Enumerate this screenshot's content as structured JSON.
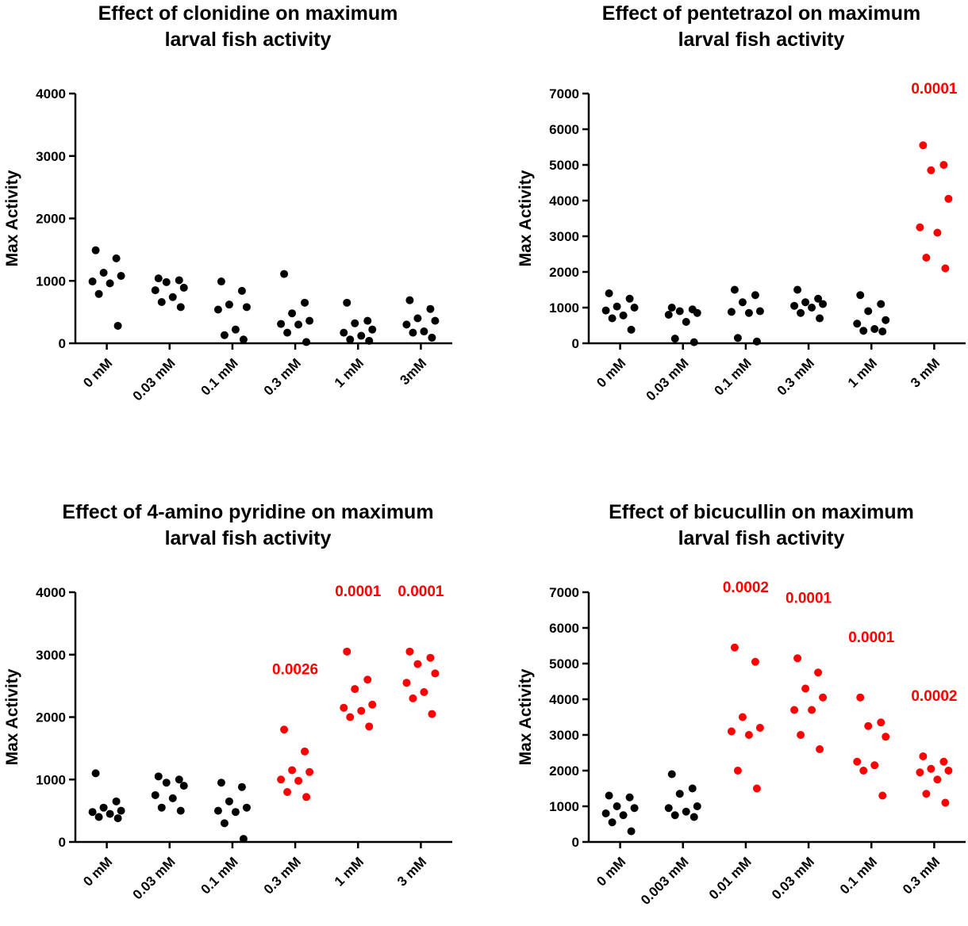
{
  "chart_data": [
    {
      "type": "strip",
      "title": [
        "Effect of clonidine on maximum",
        "larval fish activity"
      ],
      "y_label": "Max Activity",
      "categories": [
        "0 mM",
        "0.03 mM",
        "0.1 mM",
        "0.3 mM",
        "1 mM",
        "3mM"
      ],
      "colors": [
        "#000000",
        "#000000",
        "#000000",
        "#000000",
        "#000000",
        "#000000"
      ],
      "annotations": [
        null,
        null,
        null,
        null,
        null,
        null
      ],
      "values": [
        [
          1490,
          1360,
          1130,
          1080,
          990,
          960,
          790,
          280
        ],
        [
          1040,
          1010,
          980,
          890,
          850,
          740,
          660,
          580
        ],
        [
          990,
          840,
          620,
          580,
          540,
          220,
          130,
          60
        ],
        [
          1110,
          650,
          480,
          360,
          310,
          300,
          170,
          20
        ],
        [
          650,
          360,
          320,
          220,
          170,
          120,
          60,
          40
        ],
        [
          690,
          550,
          400,
          360,
          300,
          190,
          170,
          90
        ]
      ],
      "ylim": [
        0,
        4000
      ],
      "yticks": [
        0,
        1000,
        2000,
        3000,
        4000
      ]
    },
    {
      "type": "strip",
      "title": [
        "Effect of pentetrazol on maximum",
        "larval fish activity"
      ],
      "y_label": "Max Activity",
      "categories": [
        "0 mM",
        "0.03 mM",
        "0.1 mM",
        "0.3 mM",
        "1 mM",
        "3 mM"
      ],
      "colors": [
        "#000000",
        "#000000",
        "#000000",
        "#000000",
        "#000000",
        "#ff0000"
      ],
      "annotations": [
        null,
        null,
        null,
        null,
        null,
        "0.0001"
      ],
      "values": [
        [
          1400,
          1250,
          1030,
          1000,
          920,
          780,
          700,
          380
        ],
        [
          1000,
          950,
          900,
          850,
          800,
          600,
          130,
          30
        ],
        [
          1500,
          1350,
          1150,
          900,
          880,
          850,
          150,
          50
        ],
        [
          1500,
          1250,
          1150,
          1100,
          1050,
          1000,
          850,
          700
        ],
        [
          1350,
          1100,
          900,
          650,
          550,
          400,
          350,
          330
        ],
        [
          5550,
          5000,
          4850,
          4050,
          3250,
          3100,
          2400,
          2100
        ]
      ],
      "ylim": [
        0,
        7000
      ],
      "yticks": [
        0,
        1000,
        2000,
        3000,
        4000,
        5000,
        6000,
        7000
      ]
    },
    {
      "type": "strip",
      "title": [
        "Effect of 4-amino pyridine on maximum",
        "larval fish activity"
      ],
      "y_label": "Max Activity",
      "categories": [
        "0 mM",
        "0.03 mM",
        "0.1 mM",
        "0.3 mM",
        "1 mM",
        "3 mM"
      ],
      "colors": [
        "#000000",
        "#000000",
        "#000000",
        "#ff0000",
        "#ff0000",
        "#ff0000"
      ],
      "annotations": [
        null,
        null,
        null,
        "0.0026",
        "0.0001",
        "0.0001"
      ],
      "values": [
        [
          1100,
          650,
          550,
          500,
          480,
          450,
          400,
          380
        ],
        [
          1050,
          1000,
          950,
          900,
          750,
          700,
          550,
          500
        ],
        [
          950,
          880,
          650,
          550,
          500,
          480,
          300,
          50
        ],
        [
          1800,
          1450,
          1150,
          1120,
          1000,
          980,
          800,
          720
        ],
        [
          3050,
          2600,
          2450,
          2200,
          2150,
          2100,
          2000,
          1850
        ],
        [
          3050,
          2950,
          2850,
          2700,
          2550,
          2400,
          2300,
          2050
        ]
      ],
      "ylim": [
        0,
        4000
      ],
      "yticks": [
        0,
        1000,
        2000,
        3000,
        4000
      ]
    },
    {
      "type": "strip",
      "title": [
        "Effect of bicucullin on maximum",
        "larval fish activity"
      ],
      "y_label": "Max Activity",
      "categories": [
        "0 mM",
        "0.003 mM",
        "0.01 mM",
        "0.03 mM",
        "0.1 mM",
        "0.3 mM"
      ],
      "colors": [
        "#000000",
        "#000000",
        "#ff0000",
        "#ff0000",
        "#ff0000",
        "#ff0000"
      ],
      "annotations": [
        null,
        null,
        "0.0002",
        "0.0001",
        "0.0001",
        "0.0002"
      ],
      "values": [
        [
          1300,
          1250,
          1000,
          950,
          800,
          750,
          550,
          300
        ],
        [
          1900,
          1500,
          1350,
          1000,
          950,
          850,
          750,
          700
        ],
        [
          5450,
          5050,
          3500,
          3200,
          3100,
          3000,
          2000,
          1500
        ],
        [
          5150,
          4750,
          4300,
          4050,
          3700,
          3700,
          3000,
          2600
        ],
        [
          4050,
          3350,
          3250,
          2950,
          2250,
          2150,
          2000,
          1300
        ],
        [
          2400,
          2250,
          2050,
          2000,
          1950,
          1750,
          1350,
          1100
        ]
      ],
      "ylim": [
        0,
        7000
      ],
      "yticks": [
        0,
        1000,
        2000,
        3000,
        4000,
        5000,
        6000,
        7000
      ]
    }
  ]
}
